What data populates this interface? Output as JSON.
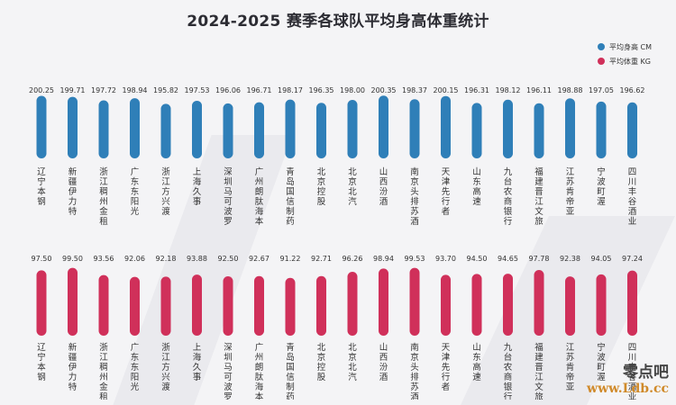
{
  "title": "2024-2025 赛季各球队平均身高体重统计",
  "legend": [
    {
      "label": "平均身高 CM",
      "color": "#2f7fb8"
    },
    {
      "label": "平均体重 KG",
      "color": "#d0305a"
    }
  ],
  "watermark": {
    "name": "零点吧",
    "url": "www.Ldb.cc"
  },
  "chart_data": [
    {
      "type": "bar",
      "name": "平均身高 CM",
      "color": "#2f7fb8",
      "categories": [
        "辽宁本钢",
        "新疆伊力特",
        "浙江稠州金租",
        "广东东阳光",
        "浙江方兴渡",
        "上海久事",
        "深圳马可波罗",
        "广州朗肽海本",
        "青岛国信制药",
        "北京控股",
        "北京北汽",
        "山西汾酒",
        "南京头排苏酒",
        "天津先行者",
        "山东高速",
        "九台农商银行",
        "福建晋江文旅",
        "江苏肯帝亚",
        "宁波町渥",
        "四川丰谷酒业"
      ],
      "values": [
        200.25,
        199.71,
        197.72,
        198.94,
        195.82,
        197.53,
        196.06,
        196.71,
        198.17,
        196.35,
        198.0,
        200.35,
        198.37,
        200.15,
        196.31,
        198.12,
        196.11,
        198.88,
        197.05,
        196.62
      ],
      "value_labels": [
        "200.25",
        "199.71",
        "197.72",
        "198.94",
        "195.82",
        "197.53",
        "196.06",
        "196.71",
        "198.17",
        "196.35",
        "198.00",
        "200.35",
        "198.37",
        "200.15",
        "196.31",
        "198.12",
        "196.11",
        "198.88",
        "197.05",
        "196.62"
      ]
    },
    {
      "type": "bar",
      "name": "平均体重 KG",
      "color": "#d0305a",
      "categories": [
        "辽宁本钢",
        "新疆伊力特",
        "浙江稠州金租",
        "广东东阳光",
        "浙江方兴渡",
        "上海久事",
        "深圳马可波罗",
        "广州朗肽海本",
        "青岛国信制药",
        "北京控股",
        "北京北汽",
        "山西汾酒",
        "南京头排苏酒",
        "天津先行者",
        "山东高速",
        "九台农商银行",
        "福建晋江文旅",
        "江苏肯帝亚",
        "宁波町渥",
        "四川丰谷酒业"
      ],
      "values": [
        97.5,
        99.5,
        93.56,
        92.06,
        92.18,
        93.88,
        92.5,
        92.67,
        91.22,
        92.71,
        96.26,
        98.94,
        99.53,
        93.7,
        94.5,
        94.65,
        97.78,
        92.38,
        94.05,
        97.24
      ],
      "value_labels": [
        "97.50",
        "99.50",
        "93.56",
        "92.06",
        "92.18",
        "93.88",
        "92.50",
        "92.67",
        "91.22",
        "92.71",
        "96.26",
        "98.94",
        "99.53",
        "93.70",
        "94.50",
        "94.65",
        "97.78",
        "92.38",
        "94.05",
        "97.24"
      ]
    }
  ]
}
